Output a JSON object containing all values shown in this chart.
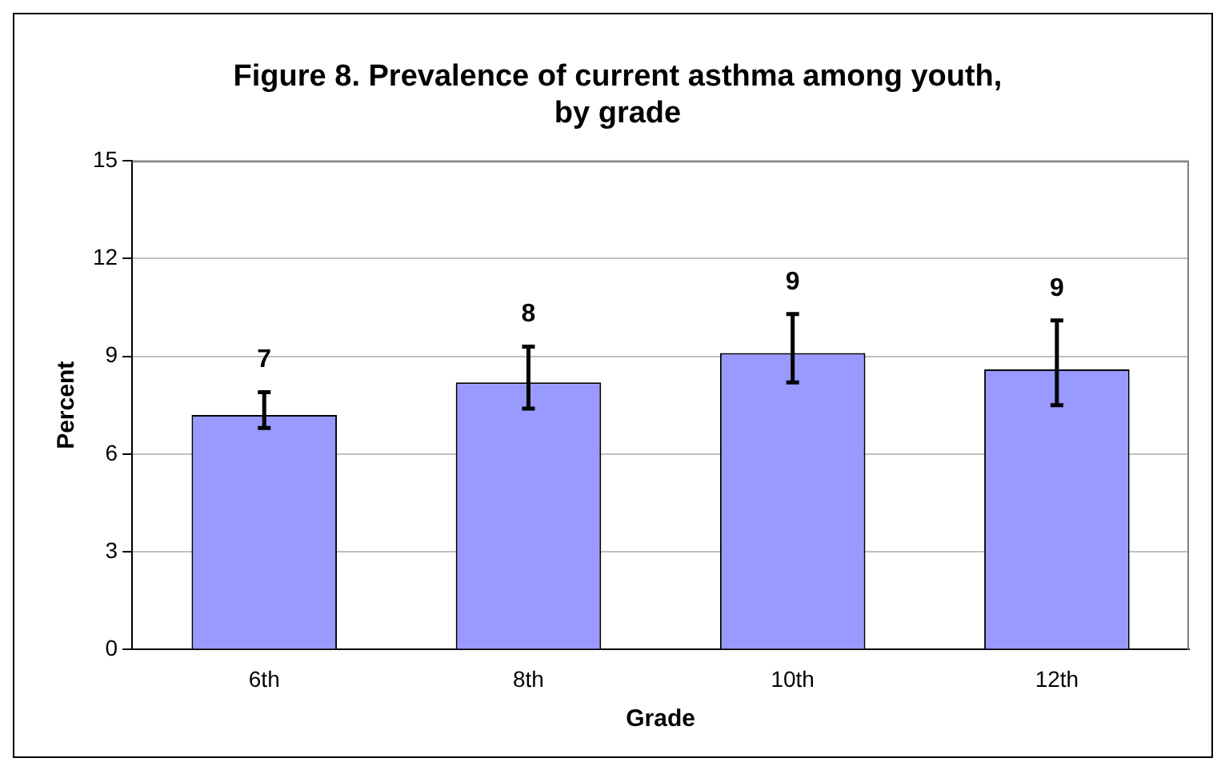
{
  "chart_data": {
    "type": "bar",
    "title": "Figure 8. Prevalence of current asthma among youth, by grade",
    "xlabel": "Grade",
    "ylabel": "Percent",
    "categories": [
      "6th",
      "8th",
      "10th",
      "12th"
    ],
    "values": [
      7.2,
      8.2,
      9.1,
      8.6
    ],
    "value_labels": [
      "7",
      "8",
      "9",
      "9"
    ],
    "errors": [
      [
        6.8,
        7.9
      ],
      [
        7.4,
        9.3
      ],
      [
        8.2,
        10.3
      ],
      [
        7.5,
        10.1
      ]
    ],
    "color": "#9999ff",
    "ylim": [
      0,
      15
    ],
    "yticks": [
      0,
      3,
      6,
      9,
      12,
      15
    ],
    "grid": "y",
    "legend": false
  }
}
